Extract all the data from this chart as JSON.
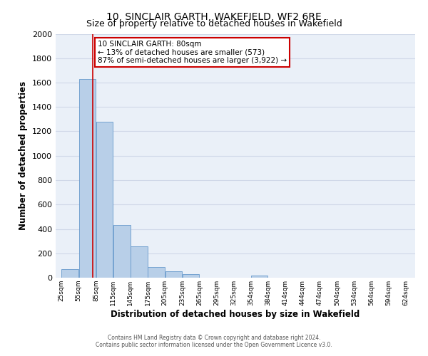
{
  "title": "10, SINCLAIR GARTH, WAKEFIELD, WF2 6RE",
  "subtitle": "Size of property relative to detached houses in Wakefield",
  "xlabel": "Distribution of detached houses by size in Wakefield",
  "ylabel": "Number of detached properties",
  "bar_left_edges": [
    25,
    55,
    85,
    115,
    145,
    175,
    205,
    235,
    265,
    295,
    325,
    354,
    384,
    414,
    444,
    474,
    504,
    534,
    564,
    594
  ],
  "bar_heights": [
    70,
    1630,
    1280,
    435,
    255,
    90,
    50,
    30,
    0,
    0,
    0,
    15,
    0,
    0,
    0,
    0,
    0,
    0,
    0,
    0
  ],
  "bar_widths": [
    30,
    30,
    30,
    30,
    30,
    30,
    30,
    30,
    30,
    30,
    29,
    30,
    30,
    30,
    30,
    30,
    30,
    30,
    30,
    30
  ],
  "bar_color": "#b8cfe8",
  "bar_edge_color": "#6699cc",
  "tick_labels": [
    "25sqm",
    "55sqm",
    "85sqm",
    "115sqm",
    "145sqm",
    "175sqm",
    "205sqm",
    "235sqm",
    "265sqm",
    "295sqm",
    "325sqm",
    "354sqm",
    "384sqm",
    "414sqm",
    "444sqm",
    "474sqm",
    "504sqm",
    "534sqm",
    "564sqm",
    "594sqm",
    "624sqm"
  ],
  "tick_positions": [
    25,
    55,
    85,
    115,
    145,
    175,
    205,
    235,
    265,
    295,
    325,
    354,
    384,
    414,
    444,
    474,
    504,
    534,
    564,
    594,
    624
  ],
  "vline_x": 80,
  "vline_color": "#cc0000",
  "ylim": [
    0,
    2000
  ],
  "xlim": [
    15,
    640
  ],
  "yticks": [
    0,
    200,
    400,
    600,
    800,
    1000,
    1200,
    1400,
    1600,
    1800,
    2000
  ],
  "annotation_text": "10 SINCLAIR GARTH: 80sqm\n← 13% of detached houses are smaller (573)\n87% of semi-detached houses are larger (3,922) →",
  "annotation_box_color": "#ffffff",
  "annotation_box_edgecolor": "#cc0000",
  "grid_color": "#d0d8e8",
  "background_color": "#eaf0f8",
  "footer_line1": "Contains HM Land Registry data © Crown copyright and database right 2024.",
  "footer_line2": "Contains public sector information licensed under the Open Government Licence v3.0."
}
